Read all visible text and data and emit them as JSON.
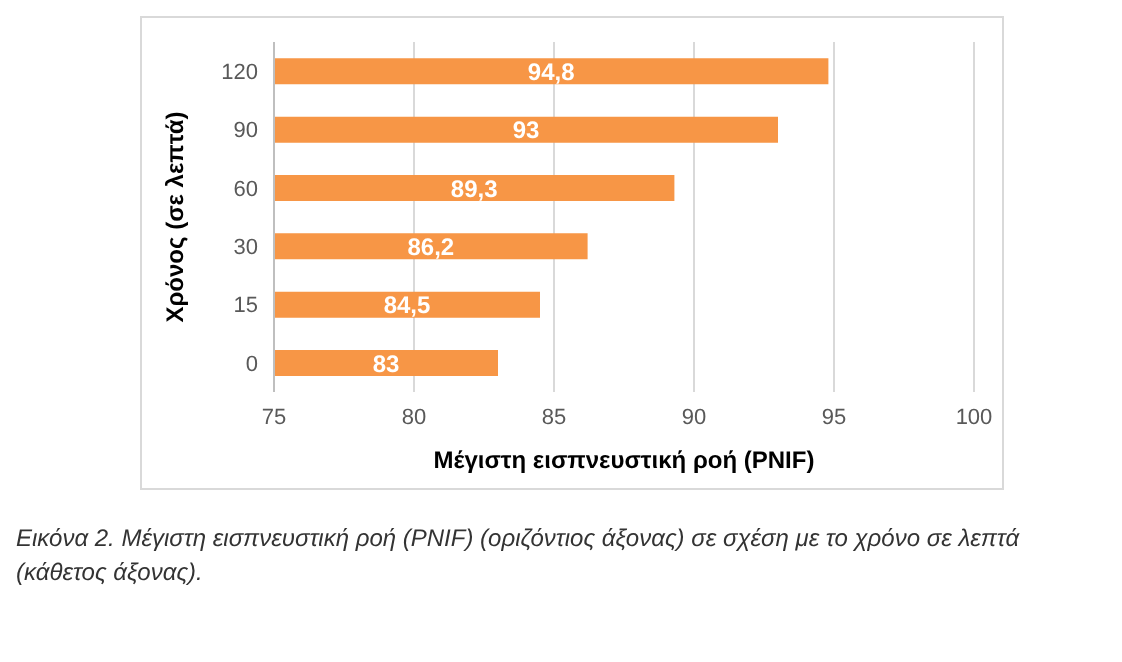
{
  "chart_data": {
    "type": "bar",
    "orientation": "horizontal",
    "categories": [
      "120",
      "90",
      "60",
      "30",
      "15",
      "0"
    ],
    "values": [
      94.8,
      93,
      89.3,
      86.2,
      84.5,
      83
    ],
    "value_labels": [
      "94,8",
      "93",
      "89,3",
      "86,2",
      "84,5",
      "83"
    ],
    "color": "#f79646",
    "xlim": [
      75,
      100
    ],
    "xticks": [
      75,
      80,
      85,
      90,
      95,
      100
    ],
    "xlabel": "Μέγιστη εισπνευστική ροή (PNIF)",
    "ylabel": "Χρόνος (σε λεπτά)",
    "grid": "x",
    "annotations": [
      "Εικόνα 2. Μέγιστη εισπνευστική ροή (PNIF) (οριζόντιος άξονας) σε σχέση με το χρόνο σε λεπτά (κάθετος άξονας)."
    ]
  }
}
